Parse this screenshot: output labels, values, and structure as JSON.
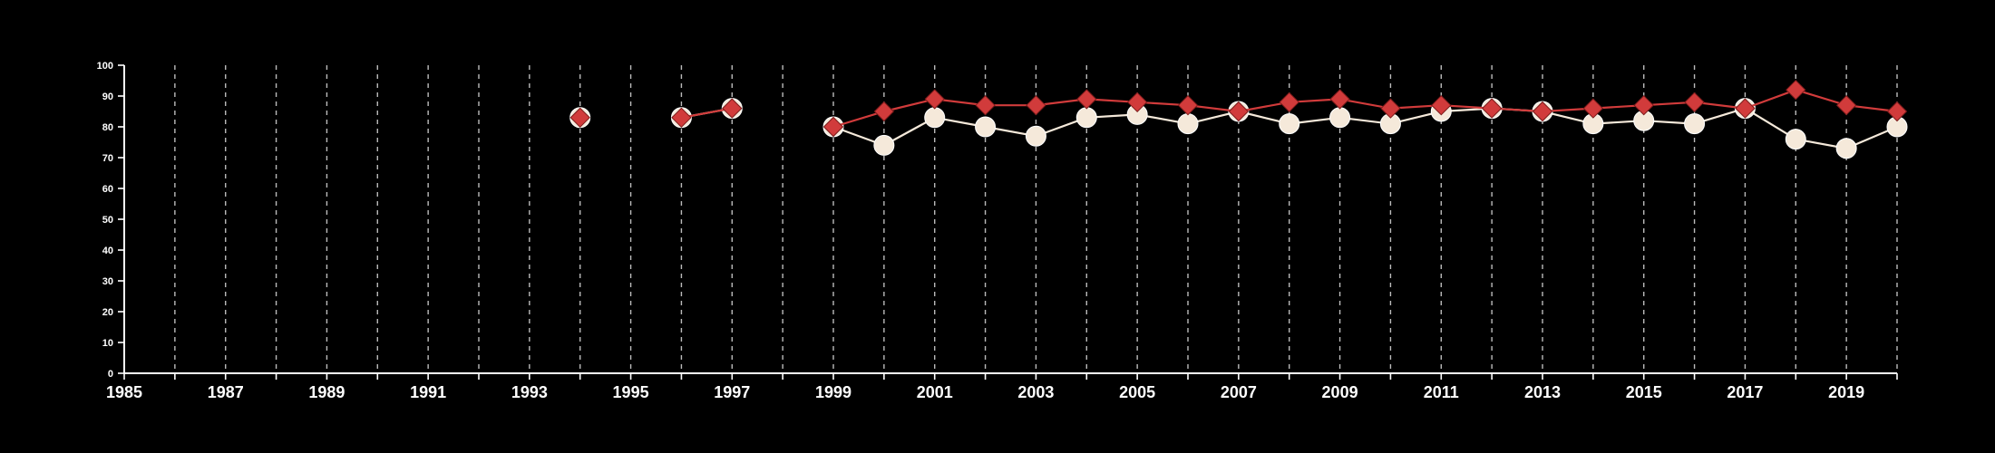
{
  "chart_data": {
    "type": "line",
    "title": "",
    "xlabel": "",
    "ylabel": "",
    "xlim": [
      1985,
      2020
    ],
    "ylim": [
      0,
      100
    ],
    "y_ticks": [
      0,
      10,
      20,
      30,
      40,
      50,
      60,
      70,
      80,
      90,
      100
    ],
    "y_tick_labels": [
      "0",
      "10",
      "20",
      "30",
      "40",
      "50",
      "60",
      "70",
      "80",
      "90",
      "100"
    ],
    "x_ticks": [
      1985,
      1987,
      1989,
      1991,
      1993,
      1995,
      1997,
      1999,
      2001,
      2003,
      2005,
      2007,
      2009,
      2011,
      2013,
      2015,
      2017,
      2019
    ],
    "x_tick_labels": [
      "1985",
      "1987",
      "1989",
      "1991",
      "1993",
      "1995",
      "1997",
      "1999",
      "2001",
      "2003",
      "2005",
      "2007",
      "2009",
      "2011",
      "2013",
      "2015",
      "2017",
      "2019"
    ],
    "grid": "vertical dashed lines at every year",
    "legend": "none",
    "colors": {
      "background": "#000000",
      "axis": "#ffffff",
      "grid": "#bbbbbb",
      "series_circle": "#f5e9da",
      "series_diamond": "#d13b3b"
    },
    "series": [
      {
        "marker": "circle",
        "color": "#f5e9da",
        "points": [
          [
            1994,
            83
          ],
          [
            1996,
            83
          ],
          [
            1997,
            86
          ],
          [
            1999,
            80
          ],
          [
            2000,
            74
          ],
          [
            2001,
            83
          ],
          [
            2002,
            80
          ],
          [
            2003,
            77
          ],
          [
            2004,
            83
          ],
          [
            2005,
            84
          ],
          [
            2006,
            81
          ],
          [
            2007,
            85
          ],
          [
            2008,
            81
          ],
          [
            2009,
            83
          ],
          [
            2010,
            81
          ],
          [
            2011,
            85
          ],
          [
            2012,
            86
          ],
          [
            2013,
            85
          ],
          [
            2014,
            81
          ],
          [
            2015,
            82
          ],
          [
            2016,
            81
          ],
          [
            2017,
            86
          ],
          [
            2018,
            76
          ],
          [
            2019,
            73
          ],
          [
            2020,
            80
          ]
        ]
      },
      {
        "marker": "diamond",
        "color": "#d13b3b",
        "points": [
          [
            1994,
            83
          ],
          [
            1996,
            83
          ],
          [
            1997,
            86
          ],
          [
            1999,
            80
          ],
          [
            2000,
            85
          ],
          [
            2001,
            89
          ],
          [
            2002,
            87
          ],
          [
            2003,
            87
          ],
          [
            2004,
            89
          ],
          [
            2005,
            88
          ],
          [
            2006,
            87
          ],
          [
            2007,
            85
          ],
          [
            2008,
            88
          ],
          [
            2009,
            89
          ],
          [
            2010,
            86
          ],
          [
            2011,
            87
          ],
          [
            2012,
            86
          ],
          [
            2013,
            85
          ],
          [
            2014,
            86
          ],
          [
            2015,
            87
          ],
          [
            2016,
            88
          ],
          [
            2017,
            86
          ],
          [
            2018,
            92
          ],
          [
            2019,
            87
          ],
          [
            2020,
            85
          ]
        ]
      }
    ]
  }
}
